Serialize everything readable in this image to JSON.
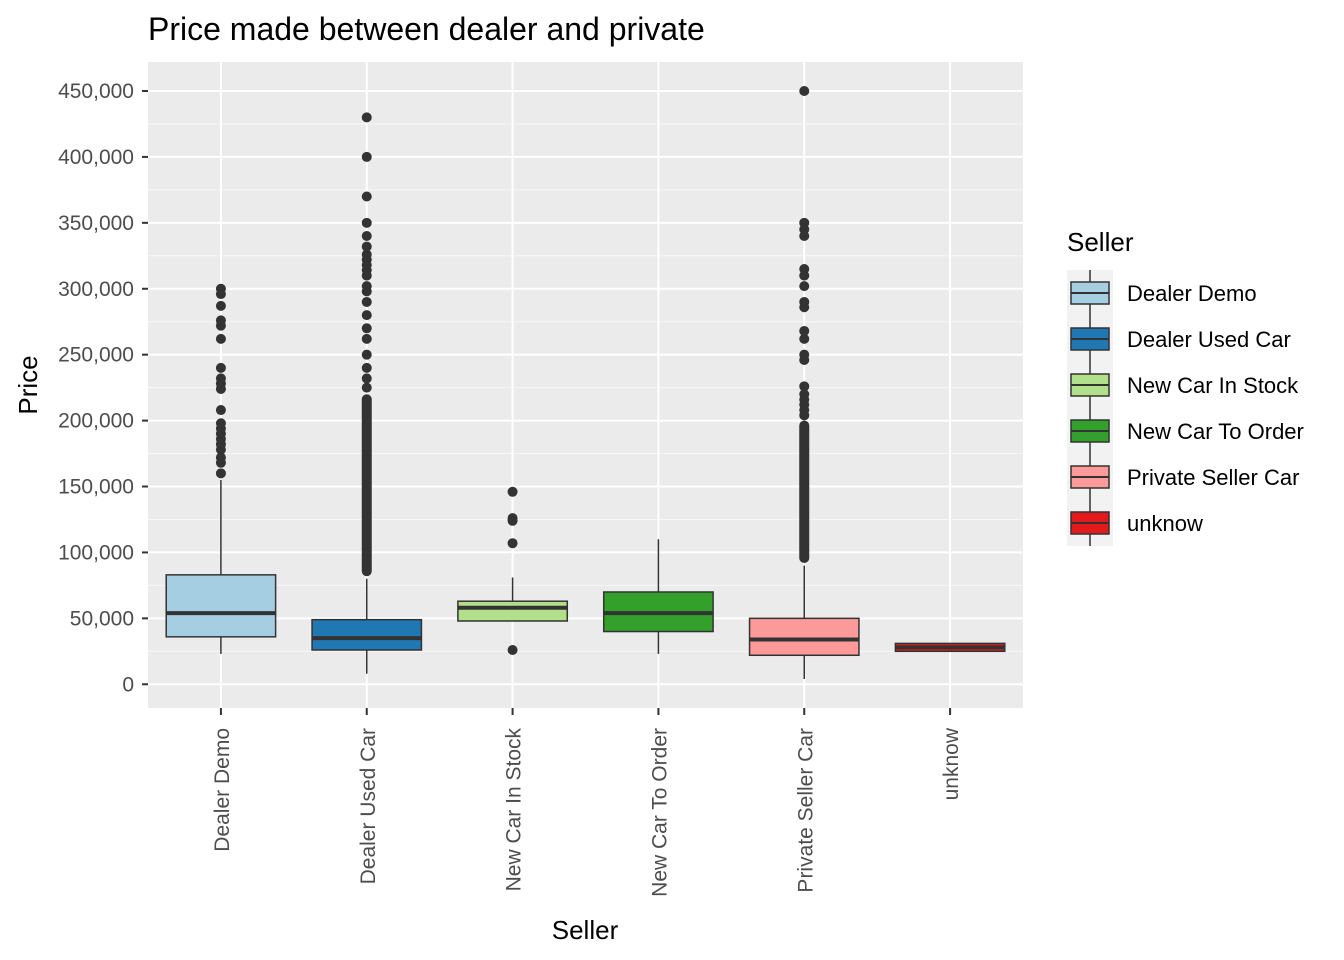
{
  "chart_data": {
    "type": "boxplot",
    "title": "Price made between dealer and private",
    "xlabel": "Seller",
    "ylabel": "Price",
    "ylim": [
      -18000,
      472000
    ],
    "yticks": [
      0,
      50000,
      100000,
      150000,
      200000,
      250000,
      300000,
      350000,
      400000,
      450000
    ],
    "ytick_labels": [
      "0",
      "50,000",
      "100,000",
      "150,000",
      "200,000",
      "250,000",
      "300,000",
      "350,000",
      "400,000",
      "450,000"
    ],
    "grid": true,
    "legend": {
      "title": "Seller",
      "position": "right"
    },
    "categories": [
      "Dealer Demo",
      "Dealer Used Car",
      "New Car In Stock",
      "New Car To Order",
      "Private Seller Car",
      "unknow"
    ],
    "series": [
      {
        "name": "Dealer Demo",
        "color": "#a6cee3",
        "whisker_low": 23000,
        "q1": 36000,
        "median": 54000,
        "q3": 83000,
        "whisker_high": 155000,
        "outliers": [
          160000,
          168000,
          172000,
          178000,
          182000,
          186000,
          190000,
          194000,
          198000,
          208000,
          224000,
          228000,
          232000,
          240000,
          262000,
          272000,
          276000,
          287000,
          296000,
          300000
        ]
      },
      {
        "name": "Dealer Used Car",
        "color": "#1f78b4",
        "whisker_low": 8000,
        "q1": 26000,
        "median": 35000,
        "q3": 49000,
        "whisker_high": 80000,
        "outliers_dense_range": [
          82000,
          220000
        ],
        "outliers": [
          225000,
          232000,
          240000,
          250000,
          262000,
          270000,
          280000,
          290000,
          298000,
          302000,
          310000,
          314000,
          318000,
          322000,
          326000,
          332000,
          340000,
          350000,
          370000,
          400000,
          430000
        ]
      },
      {
        "name": "New Car In Stock",
        "color": "#b2df8a",
        "whisker_low": 48000,
        "q1": 48000,
        "median": 58000,
        "q3": 63000,
        "whisker_high": 81000,
        "outliers": [
          26000,
          107000,
          124000,
          126000,
          146000
        ]
      },
      {
        "name": "New Car To Order",
        "color": "#33a02c",
        "whisker_low": 23000,
        "q1": 40000,
        "median": 54000,
        "q3": 70000,
        "whisker_high": 110000,
        "outliers": []
      },
      {
        "name": "Private Seller Car",
        "color": "#fb9a99",
        "whisker_low": 4000,
        "q1": 22000,
        "median": 34000,
        "q3": 50000,
        "whisker_high": 90000,
        "outliers_dense_range": [
          92000,
          200000
        ],
        "outliers": [
          204000,
          208000,
          212000,
          216000,
          220000,
          226000,
          246000,
          250000,
          262000,
          268000,
          286000,
          290000,
          302000,
          310000,
          315000,
          340000,
          345000,
          350000,
          450000
        ]
      },
      {
        "name": "unknow",
        "color": "#e31a1c",
        "whisker_low": 25000,
        "q1": 25000,
        "median": 28000,
        "q3": 31000,
        "whisker_high": 31000,
        "outliers": []
      }
    ]
  }
}
